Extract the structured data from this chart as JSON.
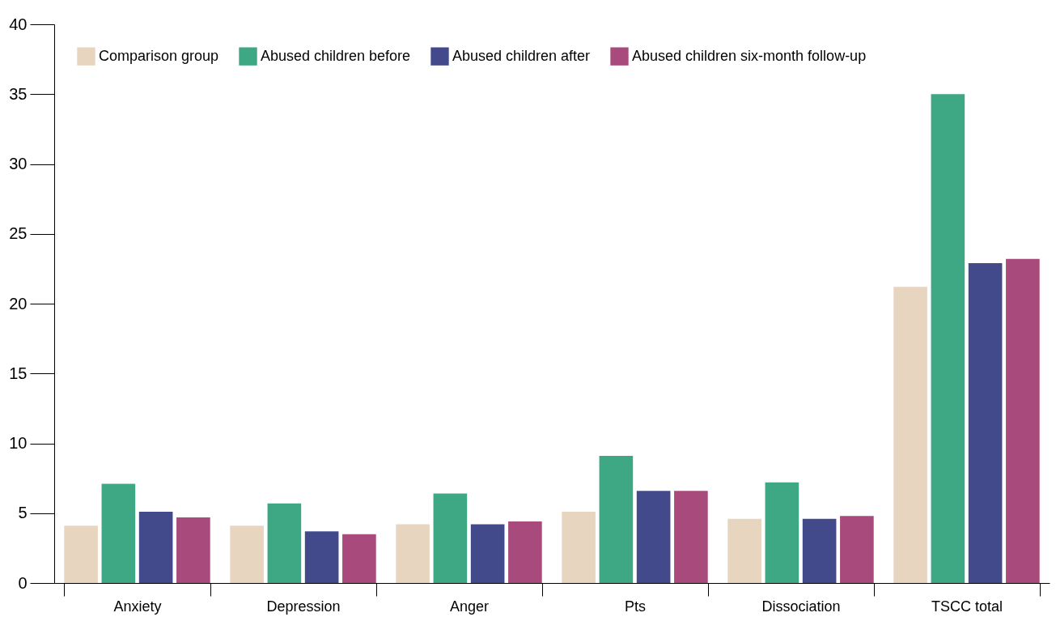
{
  "chart_data": {
    "type": "bar",
    "categories": [
      "Anxiety",
      "Depression",
      "Anger",
      "Pts",
      "Dissociation",
      "TSCC total"
    ],
    "series": [
      {
        "name": "Comparison group",
        "color": "#e8d5c0",
        "values": [
          4.1,
          4.1,
          4.2,
          5.1,
          4.6,
          21.2
        ]
      },
      {
        "name": "Abused children before",
        "color": "#3ea784",
        "values": [
          7.1,
          5.7,
          6.4,
          9.1,
          7.2,
          35
        ]
      },
      {
        "name": "Abused children after",
        "color": "#434a8c",
        "values": [
          5.1,
          3.7,
          4.2,
          6.6,
          4.6,
          22.9
        ]
      },
      {
        "name": "Abused children six-month follow-up",
        "color": "#a84b7c",
        "values": [
          4.7,
          3.5,
          4.4,
          6.6,
          4.8,
          23.2
        ]
      }
    ],
    "ylim": [
      0,
      40
    ],
    "yticks": [
      0,
      5,
      10,
      15,
      20,
      25,
      30,
      35,
      40
    ],
    "grid": false,
    "legend": "top left"
  }
}
